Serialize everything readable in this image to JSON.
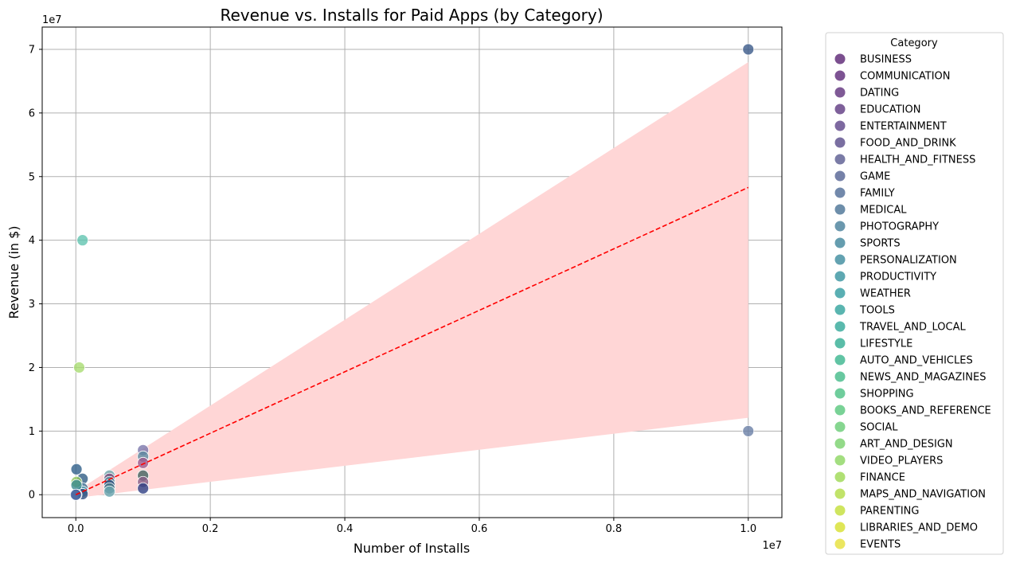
{
  "chart_data": {
    "type": "scatter",
    "title": "Revenue vs. Installs for Paid Apps (by Category)",
    "xlabel": "Number of Installs",
    "ylabel": "Revenue (in $)",
    "x_offset_label": "1e7",
    "y_offset_label": "1e7",
    "x_scale": 10000000,
    "y_scale": 10000000,
    "xlim": [
      -500000,
      10500000
    ],
    "ylim": [
      -3600000,
      73500000
    ],
    "x_ticks": [
      0,
      2000000,
      4000000,
      6000000,
      8000000,
      10000000
    ],
    "x_tick_labels": [
      "0.0",
      "0.2",
      "0.4",
      "0.6",
      "0.8",
      "1.0"
    ],
    "y_ticks": [
      0,
      10000000,
      20000000,
      30000000,
      40000000,
      50000000,
      60000000,
      70000000
    ],
    "y_tick_labels": [
      "0",
      "1",
      "2",
      "3",
      "4",
      "5",
      "6",
      "7"
    ],
    "grid": true,
    "legend_title": "Category",
    "legend_position": "outside-right",
    "categories": [
      {
        "name": "BUSINESS",
        "color": "#7b4f8f"
      },
      {
        "name": "COMMUNICATION",
        "color": "#7d5393"
      },
      {
        "name": "DATING",
        "color": "#7f5a96"
      },
      {
        "name": "EDUCATION",
        "color": "#7e609a"
      },
      {
        "name": "ENTERTAINMENT",
        "color": "#7d69a0"
      },
      {
        "name": "FOOD_AND_DRINK",
        "color": "#7a6fa1"
      },
      {
        "name": "HEALTH_AND_FITNESS",
        "color": "#7a7ba6"
      },
      {
        "name": "GAME",
        "color": "#7581a8"
      },
      {
        "name": "FAMILY",
        "color": "#7289ab"
      },
      {
        "name": "MEDICAL",
        "color": "#6d8eaa"
      },
      {
        "name": "PHOTOGRAPHY",
        "color": "#6b98ae"
      },
      {
        "name": "SPORTS",
        "color": "#659daf"
      },
      {
        "name": "PERSONALIZATION",
        "color": "#63a2b1"
      },
      {
        "name": "PRODUCTIVITY",
        "color": "#5ea8b2"
      },
      {
        "name": "WEATHER",
        "color": "#5aafb3"
      },
      {
        "name": "TOOLS",
        "color": "#5ab5b0"
      },
      {
        "name": "TRAVEL_AND_LOCAL",
        "color": "#5ab9ad"
      },
      {
        "name": "LIFESTYLE",
        "color": "#5abda8"
      },
      {
        "name": "AUTO_AND_VEHICLES",
        "color": "#61c4a4"
      },
      {
        "name": "NEWS_AND_MAGAZINES",
        "color": "#68c8a0"
      },
      {
        "name": "SHOPPING",
        "color": "#6fcd9c"
      },
      {
        "name": "BOOKS_AND_REFERENCE",
        "color": "#79d296"
      },
      {
        "name": "SOCIAL",
        "color": "#86d690"
      },
      {
        "name": "ART_AND_DESIGN",
        "color": "#93da89"
      },
      {
        "name": "VIDEO_PLAYERS",
        "color": "#a3de80"
      },
      {
        "name": "FINANCE",
        "color": "#b0e074"
      },
      {
        "name": "MAPS_AND_NAVIGATION",
        "color": "#c1e36a"
      },
      {
        "name": "PARENTING",
        "color": "#cfe55f"
      },
      {
        "name": "LIBRARIES_AND_DEMO",
        "color": "#dfe657"
      },
      {
        "name": "EVENTS",
        "color": "#ebe660"
      }
    ],
    "points": [
      {
        "x": 10000000,
        "y": 70000000,
        "color": "#3b5a8a"
      },
      {
        "x": 10000000,
        "y": 10000000,
        "color": "#6a7fa6"
      },
      {
        "x": 100000,
        "y": 40000000,
        "color": "#62c4b0"
      },
      {
        "x": 50000,
        "y": 20000000,
        "color": "#a9dc72"
      },
      {
        "x": 1000000,
        "y": 7000000,
        "color": "#7b77ab"
      },
      {
        "x": 1000000,
        "y": 6000000,
        "color": "#5e8aa0"
      },
      {
        "x": 1000000,
        "y": 5000000,
        "color": "#9e5a8e"
      },
      {
        "x": 1000000,
        "y": 3000000,
        "color": "#41635f"
      },
      {
        "x": 1000000,
        "y": 2000000,
        "color": "#8a5f87"
      },
      {
        "x": 1000000,
        "y": 1000000,
        "color": "#2e3f83"
      },
      {
        "x": 500000,
        "y": 3000000,
        "color": "#6faab0"
      },
      {
        "x": 500000,
        "y": 2500000,
        "color": "#7c4b7c"
      },
      {
        "x": 500000,
        "y": 2000000,
        "color": "#5f9aa8"
      },
      {
        "x": 500000,
        "y": 1500000,
        "color": "#2e4f7d"
      },
      {
        "x": 500000,
        "y": 1000000,
        "color": "#4d7b8a"
      },
      {
        "x": 500000,
        "y": 500000,
        "color": "#6aa6b0"
      },
      {
        "x": 100000,
        "y": 2500000,
        "color": "#2f5d85"
      },
      {
        "x": 100000,
        "y": 1000000,
        "color": "#3a6c8f"
      },
      {
        "x": 100000,
        "y": 500000,
        "color": "#5fa3b5"
      },
      {
        "x": 100000,
        "y": 100000,
        "color": "#2f4e80"
      },
      {
        "x": 10000,
        "y": 4000000,
        "color": "#2f5f8a"
      },
      {
        "x": 10000,
        "y": 2000000,
        "color": "#92c85f"
      },
      {
        "x": 10000,
        "y": 1500000,
        "color": "#3a8a8f"
      },
      {
        "x": 10000,
        "y": 0,
        "color": "#2f4f86"
      },
      {
        "x": 1000,
        "y": 0,
        "color": "#4d6aa5"
      }
    ],
    "regression": {
      "x": [
        0,
        10000000
      ],
      "y": [
        0,
        48300000
      ],
      "color": "#ff0000"
    },
    "confidence_band": {
      "x": [
        0,
        10000000
      ],
      "upper": [
        500000,
        68000000
      ],
      "lower": [
        -500000,
        12100000
      ],
      "color": "#ffd6d6"
    }
  }
}
